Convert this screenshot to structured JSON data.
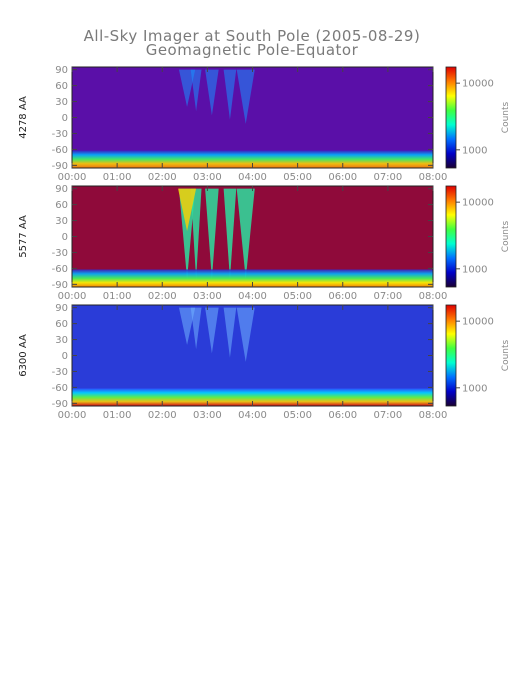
{
  "chart_data": {
    "type": "heatmap",
    "title": "All-Sky Imager at South Pole (2005-08-29)",
    "subtitle": "Geomagnetic Pole-Equator",
    "x_ticks": [
      "00:00",
      "01:00",
      "02:00",
      "03:00",
      "04:00",
      "05:00",
      "06:00",
      "07:00",
      "08:00"
    ],
    "xlim_hours": [
      0,
      8
    ],
    "y_ticks": [
      "90",
      "60",
      "30",
      "0",
      "-30",
      "-60",
      "-90"
    ],
    "ylim": [
      -95,
      95
    ],
    "colorbar": {
      "label": "Counts",
      "ticks": [
        "10000",
        "1000"
      ],
      "scale": "log",
      "colors": [
        "#1a0033",
        "#0000c8",
        "#0070ff",
        "#00ffd0",
        "#40ff40",
        "#ffff00",
        "#ff7a00",
        "#e00000"
      ]
    },
    "panels": [
      {
        "ylabel": "4278 AA",
        "background": "#5a0fa8"
      },
      {
        "ylabel": "5577 AA",
        "background": "#8f0a3a"
      },
      {
        "ylabel": "6300 AA",
        "background": "#2a3cd8"
      }
    ]
  }
}
